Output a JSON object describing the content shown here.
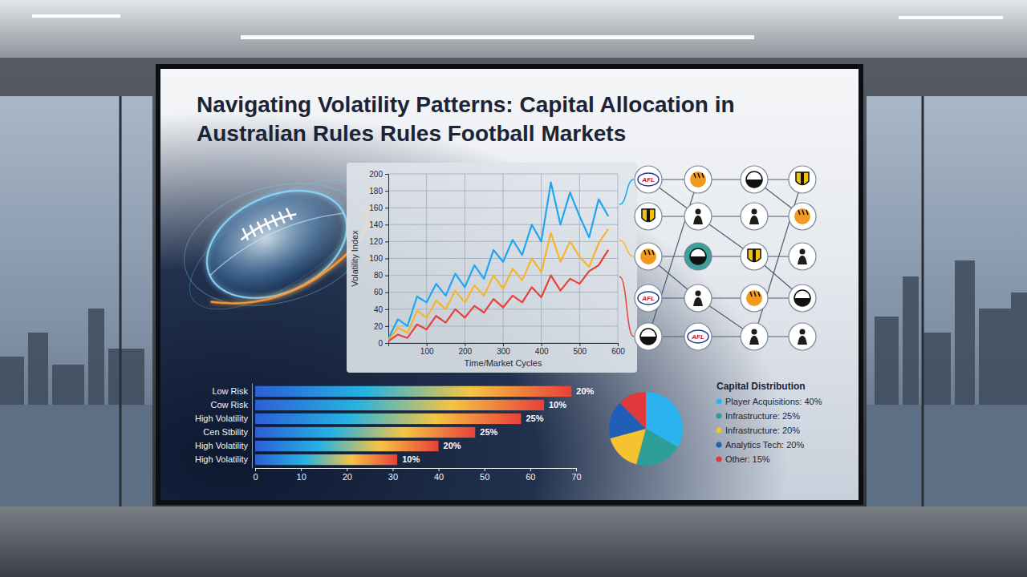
{
  "title": "Navigating Volatility Patterns: Capital Allocation in Australian Rules Rules Football Markets",
  "network": {
    "labels": [
      "AFL",
      "AFL",
      "AFL"
    ]
  },
  "chart_data": [
    {
      "type": "line",
      "x": [
        0,
        25,
        50,
        75,
        100,
        125,
        150,
        175,
        200,
        225,
        250,
        275,
        300,
        325,
        350,
        375,
        400,
        425,
        450,
        475,
        500,
        525,
        550,
        575
      ],
      "series": [
        {
          "color": "#1ea7f0",
          "values": [
            5,
            28,
            20,
            55,
            48,
            70,
            56,
            82,
            66,
            92,
            76,
            110,
            96,
            122,
            104,
            140,
            120,
            190,
            140,
            178,
            150,
            125,
            170,
            150
          ]
        },
        {
          "color": "#f5b52e",
          "values": [
            3,
            18,
            12,
            38,
            30,
            50,
            40,
            62,
            48,
            68,
            56,
            80,
            64,
            88,
            74,
            100,
            84,
            130,
            96,
            120,
            102,
            90,
            118,
            135
          ]
        },
        {
          "color": "#e8413b",
          "values": [
            2,
            10,
            6,
            22,
            16,
            32,
            24,
            40,
            30,
            44,
            36,
            52,
            42,
            56,
            48,
            66,
            54,
            80,
            62,
            76,
            70,
            85,
            92,
            110
          ]
        }
      ],
      "xlabel": "Time/Market Cycles",
      "ylabel": "Volatility Index",
      "xlim": [
        0,
        600
      ],
      "xticks": [
        100,
        200,
        300,
        400,
        500,
        600
      ],
      "ylim": [
        0,
        200
      ],
      "yticks": [
        0,
        20,
        40,
        60,
        80,
        100,
        120,
        140,
        160,
        180,
        200
      ],
      "grid": true
    },
    {
      "type": "bar",
      "orientation": "horizontal",
      "categories": [
        "Low Risk",
        "Cow Risk",
        "High Volatility",
        "Cen Stbility",
        "High Volatility",
        "High Volatility"
      ],
      "values": [
        69,
        63,
        58,
        48,
        40,
        31
      ],
      "annotations": [
        "20%",
        "10%",
        "25%",
        "25%",
        "20%",
        "10%"
      ],
      "xlim": [
        0,
        70
      ],
      "xticks": [
        0,
        10,
        20,
        30,
        40,
        50,
        60,
        70
      ]
    },
    {
      "type": "pie",
      "title": "Capital Distribution",
      "categories": [
        "Player Acquisitions: 40%",
        "Infrastructure: 25%",
        "Infrastructure: 20%",
        "Analytics Tech: 20%",
        "Other: 15%"
      ],
      "values": [
        40,
        25,
        20,
        20,
        15
      ],
      "colors": [
        "#2bb3ef",
        "#2e9e98",
        "#f5c230",
        "#1f5fb8",
        "#e0383b"
      ],
      "legend": "right"
    }
  ]
}
